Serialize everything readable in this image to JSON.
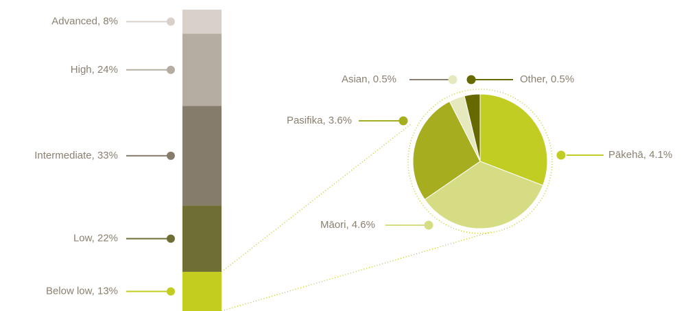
{
  "chart_data": {
    "type": "bar_of_pie",
    "bar": {
      "labels": [
        "Advanced, 8%",
        "High, 24%",
        "Intermediate, 33%",
        "Low, 22%",
        "Below low, 13%"
      ],
      "values": [
        8,
        24,
        33,
        22,
        13
      ],
      "colors": [
        "#d9d0ca",
        "#b5ada1",
        "#857c6c",
        "#6f6e35",
        "#c2cd20"
      ]
    },
    "pie": {
      "labels": [
        "Pākehā, 4.1%",
        "Māori, 4.6%",
        "Pasifika, 3.6%",
        "Asian, 0.5%",
        "Other, 0.5%"
      ],
      "values": [
        4.1,
        4.6,
        3.6,
        0.5,
        0.5
      ],
      "colors": [
        "#c2cd23",
        "#d6dc84",
        "#a6ad1f",
        "#e6e8bd",
        "#666800"
      ]
    }
  }
}
